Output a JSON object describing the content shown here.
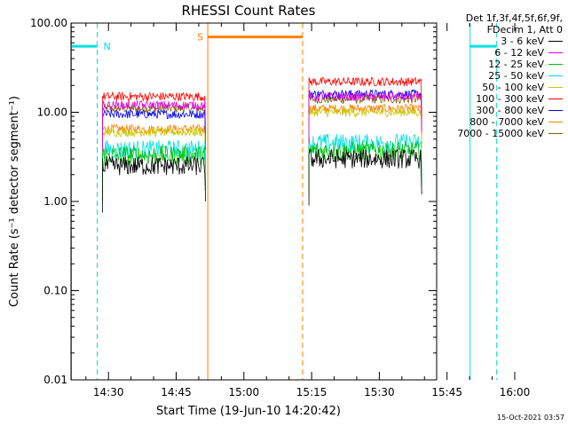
{
  "chart_data": {
    "type": "line",
    "title": "RHESSI Count Rates",
    "xlabel": "Start Time (19-Jun-10 14:20:42)",
    "ylabel": "Count Rate (s⁻¹ detector segment⁻¹)",
    "y_scale": "log",
    "ylim": [
      0.01,
      100
    ],
    "y_ticks": [
      "0.01",
      "0.10",
      "1.00",
      "10.00",
      "100.00"
    ],
    "x_range_min": [
      21.7,
      102.7
    ],
    "x_ticks": [
      {
        "label": "14:30",
        "min": 30
      },
      {
        "label": "14:45",
        "min": 45
      },
      {
        "label": "15:00",
        "min": 60
      },
      {
        "label": "15:15",
        "min": 75
      },
      {
        "label": "15:30",
        "min": 90
      },
      {
        "label": "15:45",
        "min": 105
      },
      {
        "label": "16:00",
        "min": 120
      }
    ],
    "legend_header": [
      "Det 1f,3f,4f,5f,6f,9f,",
      "FDecim 1, Att 0"
    ],
    "series": [
      {
        "name": "3 - 6 keV",
        "color": "#000000",
        "level1": 2.5,
        "level2": 3.0
      },
      {
        "name": "6 - 12 keV",
        "color": "#e000e0",
        "level1": 12.0,
        "level2": 15.0
      },
      {
        "name": "12 - 25 keV",
        "color": "#00c000",
        "level1": 3.3,
        "level2": 3.7
      },
      {
        "name": "25 - 50 keV",
        "color": "#00e0e0",
        "level1": 3.8,
        "level2": 4.5
      },
      {
        "name": "50 - 100 keV",
        "color": "#c8c800",
        "level1": 6.0,
        "level2": 10.0
      },
      {
        "name": "100 - 300 keV",
        "color": "#ff0000",
        "level1": 15.0,
        "level2": 22.0
      },
      {
        "name": "300 - 800 keV",
        "color": "#0000ff",
        "level1": 9.5,
        "level2": 16.0
      },
      {
        "name": "800 - 7000 keV",
        "color": "#ff8000",
        "level1": 6.5,
        "level2": 11.0
      },
      {
        "name": "7000 - 15000 keV",
        "color": "#806000",
        "level1": 11.0,
        "level2": 14.0
      }
    ],
    "data_intervals_min": [
      [
        28.7,
        51.5
      ],
      [
        74.4,
        99.4
      ]
    ],
    "night_intervals": [
      {
        "label": "N",
        "start_min": 21.7,
        "end_min": 27.5,
        "color": "#00e0e0"
      },
      {
        "label": "",
        "start_min": 110.0,
        "end_min": 116.0,
        "color": "#00e0e0"
      }
    ],
    "saa_intervals": [
      {
        "label": "S",
        "start_min": 52.0,
        "end_min": 73.0,
        "color": "#ff8000"
      }
    ],
    "timestamp": "15-Oct-2021 03:57"
  }
}
